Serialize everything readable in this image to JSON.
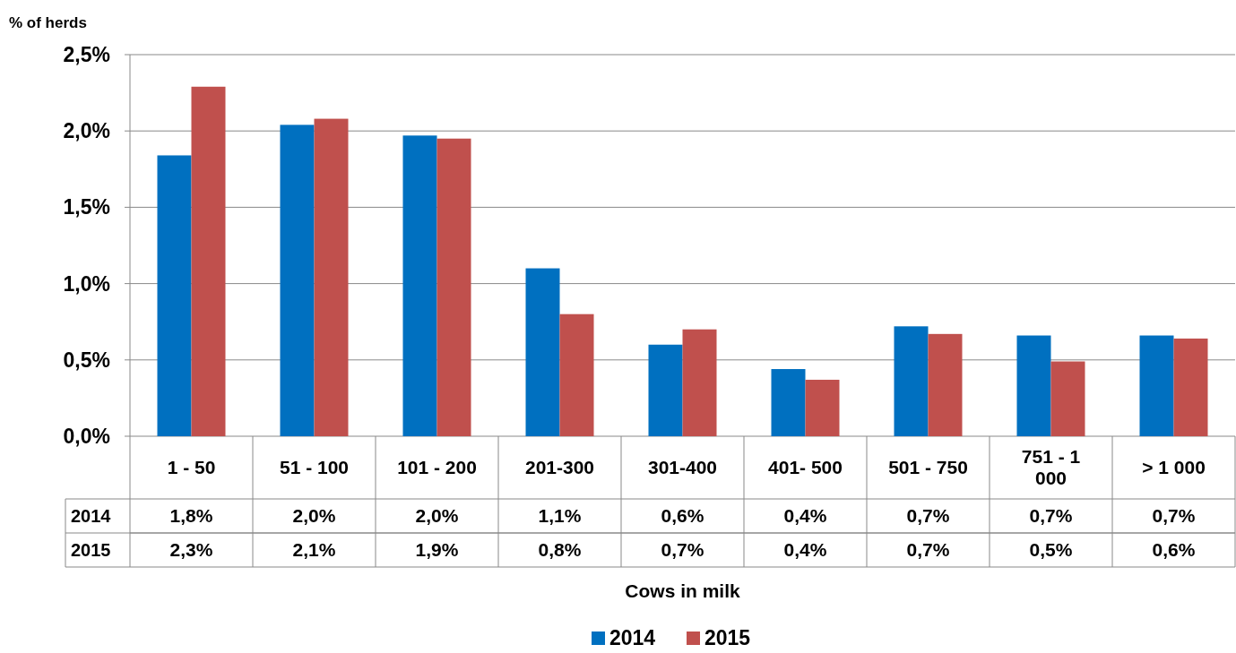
{
  "chart_data": {
    "type": "bar",
    "ylabel": "% of herds",
    "xlabel": "Cows in milk",
    "categories": [
      "1 - 50",
      "51 - 100",
      "101 - 200",
      "201-300",
      "301-400",
      "401- 500",
      "501 - 750",
      "751 - 1 000",
      "> 1 000"
    ],
    "series": [
      {
        "name": "2014",
        "color": "#0070c0",
        "values": [
          1.84,
          2.04,
          1.97,
          1.1,
          0.6,
          0.44,
          0.72,
          0.66,
          0.66
        ],
        "value_labels": [
          "1,8%",
          "2,0%",
          "2,0%",
          "1,1%",
          "0,6%",
          "0,4%",
          "0,7%",
          "0,7%",
          "0,7%"
        ]
      },
      {
        "name": "2015",
        "color": "#c0504d",
        "values": [
          2.29,
          2.08,
          1.95,
          0.8,
          0.7,
          0.37,
          0.67,
          0.49,
          0.64
        ],
        "value_labels": [
          "2,3%",
          "2,1%",
          "1,9%",
          "0,8%",
          "0,7%",
          "0,4%",
          "0,7%",
          "0,5%",
          "0,6%"
        ]
      }
    ],
    "ylim": [
      0,
      2.5
    ],
    "yticks": [
      {
        "value": 0,
        "label": "0,0%"
      },
      {
        "value": 0.5,
        "label": "0,5%"
      },
      {
        "value": 1,
        "label": "1,0%"
      },
      {
        "value": 1.5,
        "label": "1,5%"
      },
      {
        "value": 2,
        "label": "2,0%"
      },
      {
        "value": 2.5,
        "label": "2,5%"
      }
    ],
    "grid": "y",
    "legend": "bottom"
  }
}
